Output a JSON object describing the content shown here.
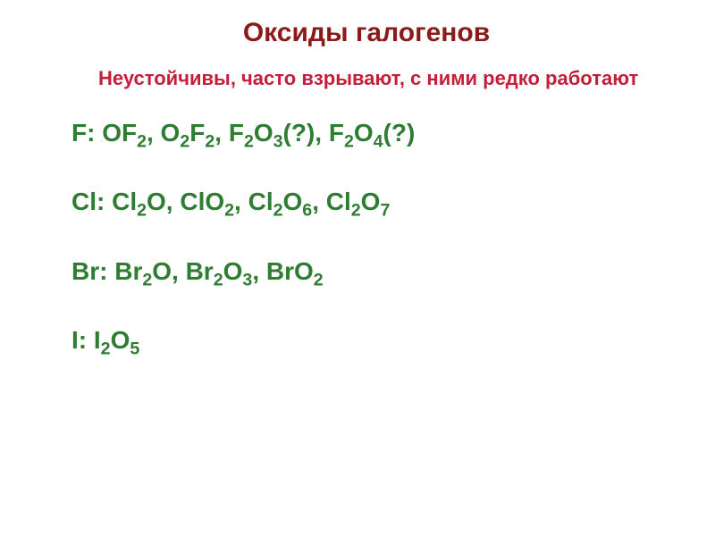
{
  "title": {
    "text": "Оксиды галогенов",
    "color": "#8b1a1a",
    "fontsize": 30
  },
  "subtitle": {
    "text": "Неустойчивы, часто взрывают, с ними редко работают",
    "color": "#c41e3a",
    "fontsize": 22
  },
  "lines": [
    {
      "label": "F:",
      "formulas": [
        "OF₂",
        "O₂F₂",
        "F₂O₃(?)",
        "F₂O₄(?)"
      ],
      "color": "#2e7d32",
      "fontsize": 28
    },
    {
      "label": "Cl:",
      "formulas": [
        "Cl₂O",
        "ClO₂",
        "Cl₂O₆",
        "Cl₂O₇"
      ],
      "color": "#2e7d32",
      "fontsize": 28
    },
    {
      "label": "Br:",
      "formulas": [
        "Br₂O",
        "Br₂O₃",
        "BrO₂"
      ],
      "color": "#2e7d32",
      "fontsize": 28
    },
    {
      "label": "I:",
      "formulas": [
        "I₂O₅"
      ],
      "color": "#2e7d32",
      "fontsize": 28
    }
  ]
}
